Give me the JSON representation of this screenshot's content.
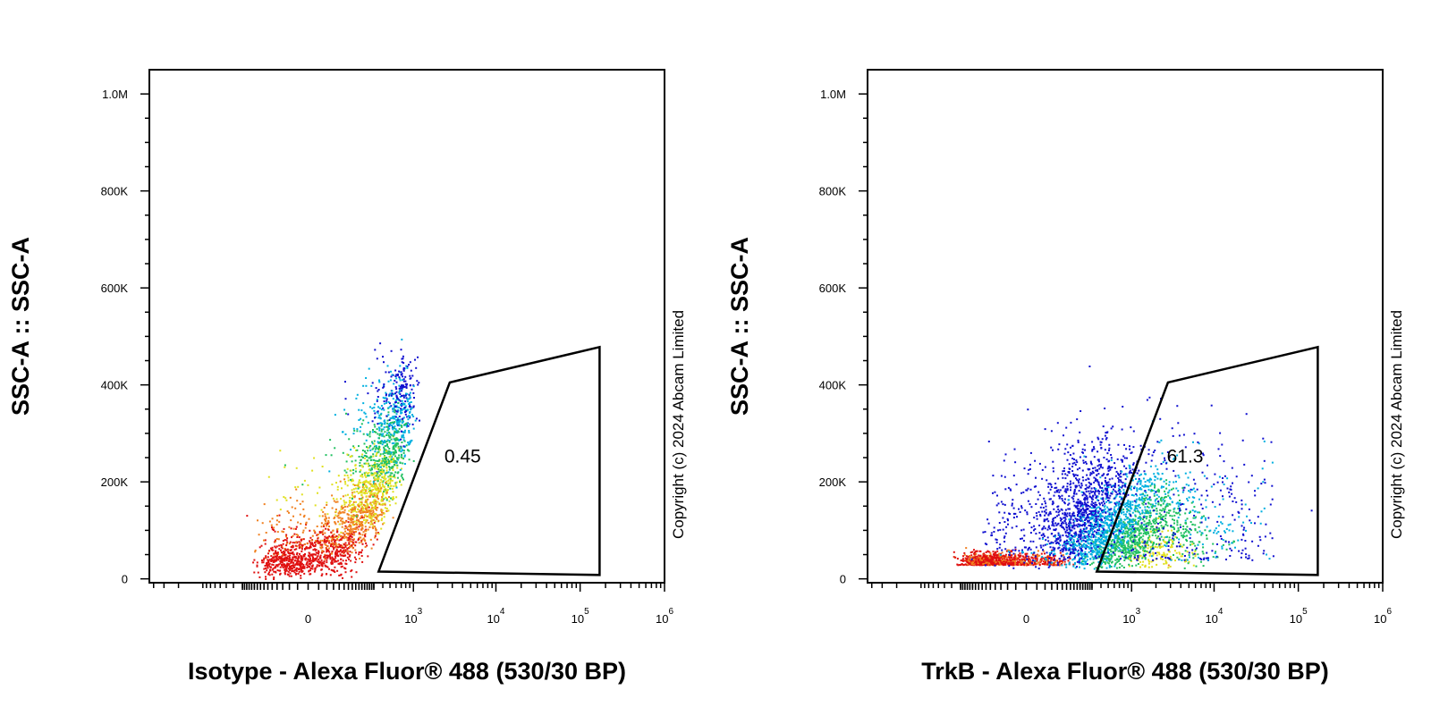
{
  "chart_data": [
    {
      "type": "scatter",
      "subtype": "flow-cytometry-pseudocolor-density",
      "xlabel": "Isotype - Alexa Fluor® 488 (530/30 BP)",
      "ylabel": "SSC-A :: SSC-A",
      "x_scale": "biexponential",
      "x_tick_labels": [
        "0",
        "10^3",
        "10^4",
        "10^5",
        "10^6"
      ],
      "x_ticks": [
        0,
        1000,
        10000,
        100000,
        1000000
      ],
      "y_tick_labels": [
        "0",
        "200K",
        "400K",
        "600K",
        "800K",
        "1.0M"
      ],
      "y_ticks": [
        0,
        200000,
        400000,
        600000,
        800000,
        1000000
      ],
      "ylim": [
        -8000,
        1050000
      ],
      "gate": {
        "label": "0.45",
        "label_position": {
          "x": 4000,
          "y": 240000
        },
        "vertices": [
          {
            "x": 350,
            "y": 15000
          },
          {
            "x": 2800,
            "y": 405000
          },
          {
            "x": 170000,
            "y": 478000
          },
          {
            "x": 170000,
            "y": 8000
          }
        ]
      },
      "population": {
        "description": "single diagonal cluster near origin, high SSC spread",
        "center": {
          "x": 20,
          "y": 45000
        },
        "extends_to": {
          "x": 700,
          "y": 460000
        }
      },
      "copyright": "Copyright (c) 2024 Abcam Limited"
    },
    {
      "type": "scatter",
      "subtype": "flow-cytometry-pseudocolor-density",
      "xlabel": "TrkB - Alexa Fluor® 488 (530/30 BP)",
      "ylabel": "SSC-A :: SSC-A",
      "x_scale": "biexponential",
      "x_tick_labels": [
        "0",
        "10^3",
        "10^4",
        "10^5",
        "10^6"
      ],
      "x_ticks": [
        0,
        1000,
        10000,
        100000,
        1000000
      ],
      "y_tick_labels": [
        "0",
        "200K",
        "400K",
        "600K",
        "800K",
        "1.0M"
      ],
      "y_ticks": [
        0,
        200000,
        400000,
        600000,
        800000,
        1000000
      ],
      "ylim": [
        -8000,
        1050000
      ],
      "gate": {
        "label": "61.3",
        "label_position": {
          "x": 4500,
          "y": 240000
        },
        "vertices": [
          {
            "x": 350,
            "y": 15000
          },
          {
            "x": 2800,
            "y": 405000
          },
          {
            "x": 170000,
            "y": 478000
          },
          {
            "x": 170000,
            "y": 8000
          }
        ]
      },
      "population": {
        "description": "small dense cluster near origin plus broad positive population",
        "center": {
          "x": 4000,
          "y": 110000
        },
        "extends_to": {
          "x": 30000,
          "y": 420000
        }
      },
      "copyright": "Copyright (c) 2024 Abcam Limited"
    }
  ],
  "colors": {
    "density_scale": [
      "#1010d0",
      "#00b0e0",
      "#20c060",
      "#e0e020",
      "#f08020",
      "#e01010"
    ],
    "axis": "#000000",
    "background": "#ffffff"
  }
}
